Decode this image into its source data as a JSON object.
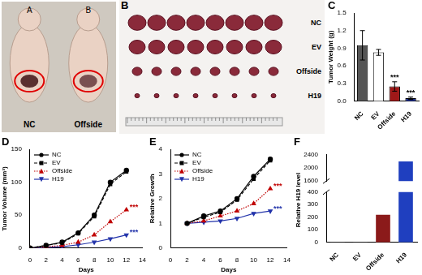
{
  "photo_panels": [
    {
      "mouse_labels": [
        "A",
        "B"
      ],
      "group_labels": [
        "NC",
        "Offside"
      ]
    },
    {
      "panel": "B",
      "group_labels": [
        "NC",
        "EV",
        "Offside",
        "H19"
      ]
    }
  ],
  "chart_data": [
    {
      "panel": "C",
      "type": "bar",
      "categories": [
        "NC",
        "EV",
        "Offside",
        "H19"
      ],
      "values": [
        0.95,
        0.83,
        0.25,
        0.05
      ],
      "errors": [
        0.25,
        0.05,
        0.08,
        0.02
      ],
      "colors": [
        "#555555",
        "#ffffff",
        "#a01818",
        "#1a2a8a"
      ],
      "y_label": "Tumor Weight (g)",
      "ylim": [
        0,
        1.5
      ],
      "yticks": [
        {
          "value": 0,
          "label": "0.0"
        },
        {
          "value": 0.3,
          "label": "0.3"
        },
        {
          "value": 0.6,
          "label": "0.6"
        },
        {
          "value": 0.9,
          "label": "0.9"
        },
        {
          "value": 1.2,
          "label": "1.2"
        },
        {
          "value": 1.5,
          "label": "1.5"
        }
      ],
      "annotations": [
        {
          "text": "***",
          "category": "Offside"
        },
        {
          "text": "***",
          "category": "H19"
        }
      ],
      "grid": false
    },
    {
      "panel": "D",
      "type": "line",
      "x": [
        0,
        2,
        4,
        6,
        8,
        10,
        12
      ],
      "x_label": "Days",
      "y_label": "Tumor Volume (mm³)",
      "xlim": [
        0,
        14
      ],
      "xticks": [
        0,
        2,
        4,
        6,
        8,
        10,
        12,
        14
      ],
      "ylim": [
        0,
        150
      ],
      "yticks": [
        0,
        50,
        100,
        150
      ],
      "legend": "top left",
      "grid": false,
      "series": [
        {
          "name": "NC",
          "color": "#000000",
          "marker": "circle",
          "line_style": "solid",
          "values": [
            0,
            4,
            9,
            23,
            50,
            100,
            118
          ]
        },
        {
          "name": "EV",
          "color": "#000000",
          "marker": "square",
          "line_style": "dashed",
          "values": [
            0,
            4,
            8,
            22,
            48,
            97,
            116
          ]
        },
        {
          "name": "Offside",
          "color": "#c00000",
          "marker": "triangle",
          "line_style": "dotted",
          "values": [
            0,
            2,
            4,
            9,
            20,
            40,
            58
          ]
        },
        {
          "name": "H19",
          "color": "#2233aa",
          "marker": "triangle_down",
          "line_style": "solid",
          "values": [
            0,
            1,
            2,
            5,
            9,
            14,
            20
          ]
        }
      ],
      "annotations": [
        {
          "text": "***",
          "series": "Offside"
        },
        {
          "text": "***",
          "series": "H19"
        }
      ]
    },
    {
      "panel": "E",
      "type": "line",
      "x": [
        2,
        4,
        6,
        8,
        10,
        12
      ],
      "x_label": "Days",
      "y_label": "Relative Growth",
      "xlim": [
        0,
        14
      ],
      "xticks": [
        0,
        2,
        4,
        6,
        8,
        10,
        12,
        14
      ],
      "ylim": [
        0,
        4
      ],
      "yticks": [
        0,
        1,
        2,
        3,
        4
      ],
      "legend": "top left",
      "grid": false,
      "series": [
        {
          "name": "NC",
          "color": "#000000",
          "marker": "circle",
          "line_style": "solid",
          "values": [
            1,
            1.3,
            1.5,
            2.0,
            2.9,
            3.6
          ]
        },
        {
          "name": "EV",
          "color": "#000000",
          "marker": "square",
          "line_style": "dashed",
          "values": [
            1,
            1.25,
            1.45,
            1.95,
            2.8,
            3.55
          ]
        },
        {
          "name": "Offside",
          "color": "#c00000",
          "marker": "triangle",
          "line_style": "dotted",
          "values": [
            1,
            1.1,
            1.3,
            1.5,
            1.8,
            2.4
          ]
        },
        {
          "name": "H19",
          "color": "#2233aa",
          "marker": "triangle_down",
          "line_style": "solid",
          "values": [
            1,
            1.05,
            1.1,
            1.2,
            1.4,
            1.5
          ]
        }
      ],
      "annotations": [
        {
          "text": "***",
          "series": "Offside"
        },
        {
          "text": "***",
          "series": "H19"
        }
      ]
    },
    {
      "panel": "F",
      "type": "bar",
      "categories": [
        "NC",
        "EV",
        "Offside",
        "H19"
      ],
      "values": [
        1,
        1,
        220,
        2200
      ],
      "colors": [
        "#555555",
        "#555555",
        "#8b1a1a",
        "#1f3fbf"
      ],
      "y_label": "Relative H19 level",
      "ylim": [
        0,
        2400
      ],
      "yticks": [
        0,
        100,
        200,
        300,
        400,
        1600,
        2000,
        2400
      ],
      "axis_break": [
        400,
        1600
      ],
      "grid": false
    }
  ]
}
